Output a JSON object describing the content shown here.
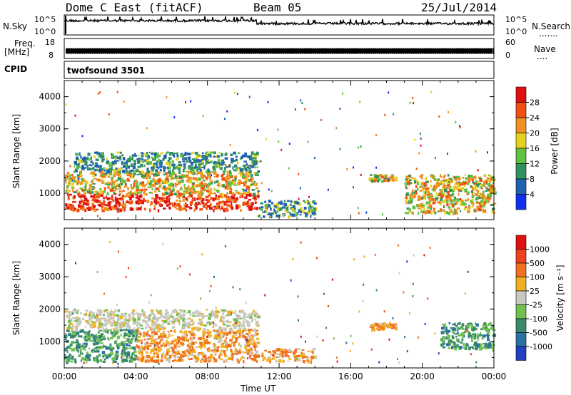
{
  "header": {
    "station": "Dome C East (fitACF)",
    "beam": "Beam 05",
    "date": "25/Jul/2014"
  },
  "top_panels": {
    "nsky_label": "N.Sky",
    "nsky_ticks": [
      "10^5",
      "10^0"
    ],
    "nsearch_label": "N.Search",
    "nsearch_dots": ".......",
    "nsearch_ticks": [
      "10^5",
      "10^0"
    ],
    "freq_label": "Freq.",
    "freq_unit": "[MHz]",
    "freq_ticks": [
      "18",
      "8"
    ],
    "nave_label": "Nave",
    "nave_dots": "....",
    "nave_ticks": [
      "60",
      "0"
    ],
    "cpid_label": "CPID",
    "cpid_value": "twofsound 3501"
  },
  "chart_data": [
    {
      "type": "heatmap",
      "name": "power",
      "ylabel": "Slant Range [km]",
      "ylim": [
        180,
        4500
      ],
      "yticks": [
        "4000",
        "3000",
        "2000",
        "1000"
      ],
      "xlim": [
        0,
        24
      ],
      "colorbar_label": "Power [dB]",
      "colorbar_ticks": [
        "28",
        "24",
        "20",
        "16",
        "12",
        "8",
        "4"
      ],
      "colors": [
        "#1030f0",
        "#2060b0",
        "#309060",
        "#60c040",
        "#e8d020",
        "#f09020",
        "#f05010",
        "#e01010"
      ],
      "echo_regions": [
        {
          "t": [
            0,
            10.8
          ],
          "r": [
            500,
            1000
          ],
          "level": "high"
        },
        {
          "t": [
            0,
            10.8
          ],
          "r": [
            1000,
            1700
          ],
          "level": "medium"
        },
        {
          "t": [
            0.5,
            10.8
          ],
          "r": [
            1700,
            2300
          ],
          "level": "low"
        },
        {
          "t": [
            10.8,
            14
          ],
          "r": [
            300,
            800
          ],
          "level": "low"
        },
        {
          "t": [
            17,
            18.5
          ],
          "r": [
            1400,
            1600
          ],
          "level": "medium"
        },
        {
          "t": [
            19,
            24
          ],
          "r": [
            400,
            1600
          ],
          "level": "medium"
        }
      ]
    },
    {
      "type": "heatmap",
      "name": "velocity",
      "ylabel": "Slant Range [km]",
      "ylim": [
        180,
        4500
      ],
      "yticks": [
        "4000",
        "3000",
        "2000",
        "1000"
      ],
      "xlim": [
        0,
        24
      ],
      "xticks": [
        "00:00",
        "04:00",
        "08:00",
        "12:00",
        "16:00",
        "20:00",
        "00:00"
      ],
      "xlabel": "Time UT",
      "colorbar_label": "Velocity [m s⁻¹]",
      "colorbar_ticks": [
        "1000",
        "500",
        "100",
        "25",
        "-25",
        "-100",
        "-500",
        "-1000"
      ],
      "colors": [
        "#2040c0",
        "#2a70a0",
        "#3a8a6a",
        "#70c050",
        "#c8c8c0",
        "#f0b020",
        "#f07020",
        "#f04020",
        "#e01010"
      ],
      "echo_regions": [
        {
          "t": [
            0,
            4
          ],
          "r": [
            400,
            1400
          ],
          "level": "toward"
        },
        {
          "t": [
            4,
            10.8
          ],
          "r": [
            400,
            1400
          ],
          "level": "away"
        },
        {
          "t": [
            0,
            10.8
          ],
          "r": [
            1400,
            2000
          ],
          "level": "near-zero"
        },
        {
          "t": [
            11,
            14
          ],
          "r": [
            400,
            800
          ],
          "level": "away"
        },
        {
          "t": [
            17,
            18.5
          ],
          "r": [
            1400,
            1600
          ],
          "level": "away"
        },
        {
          "t": [
            21,
            24
          ],
          "r": [
            800,
            1600
          ],
          "level": "toward"
        }
      ]
    }
  ]
}
